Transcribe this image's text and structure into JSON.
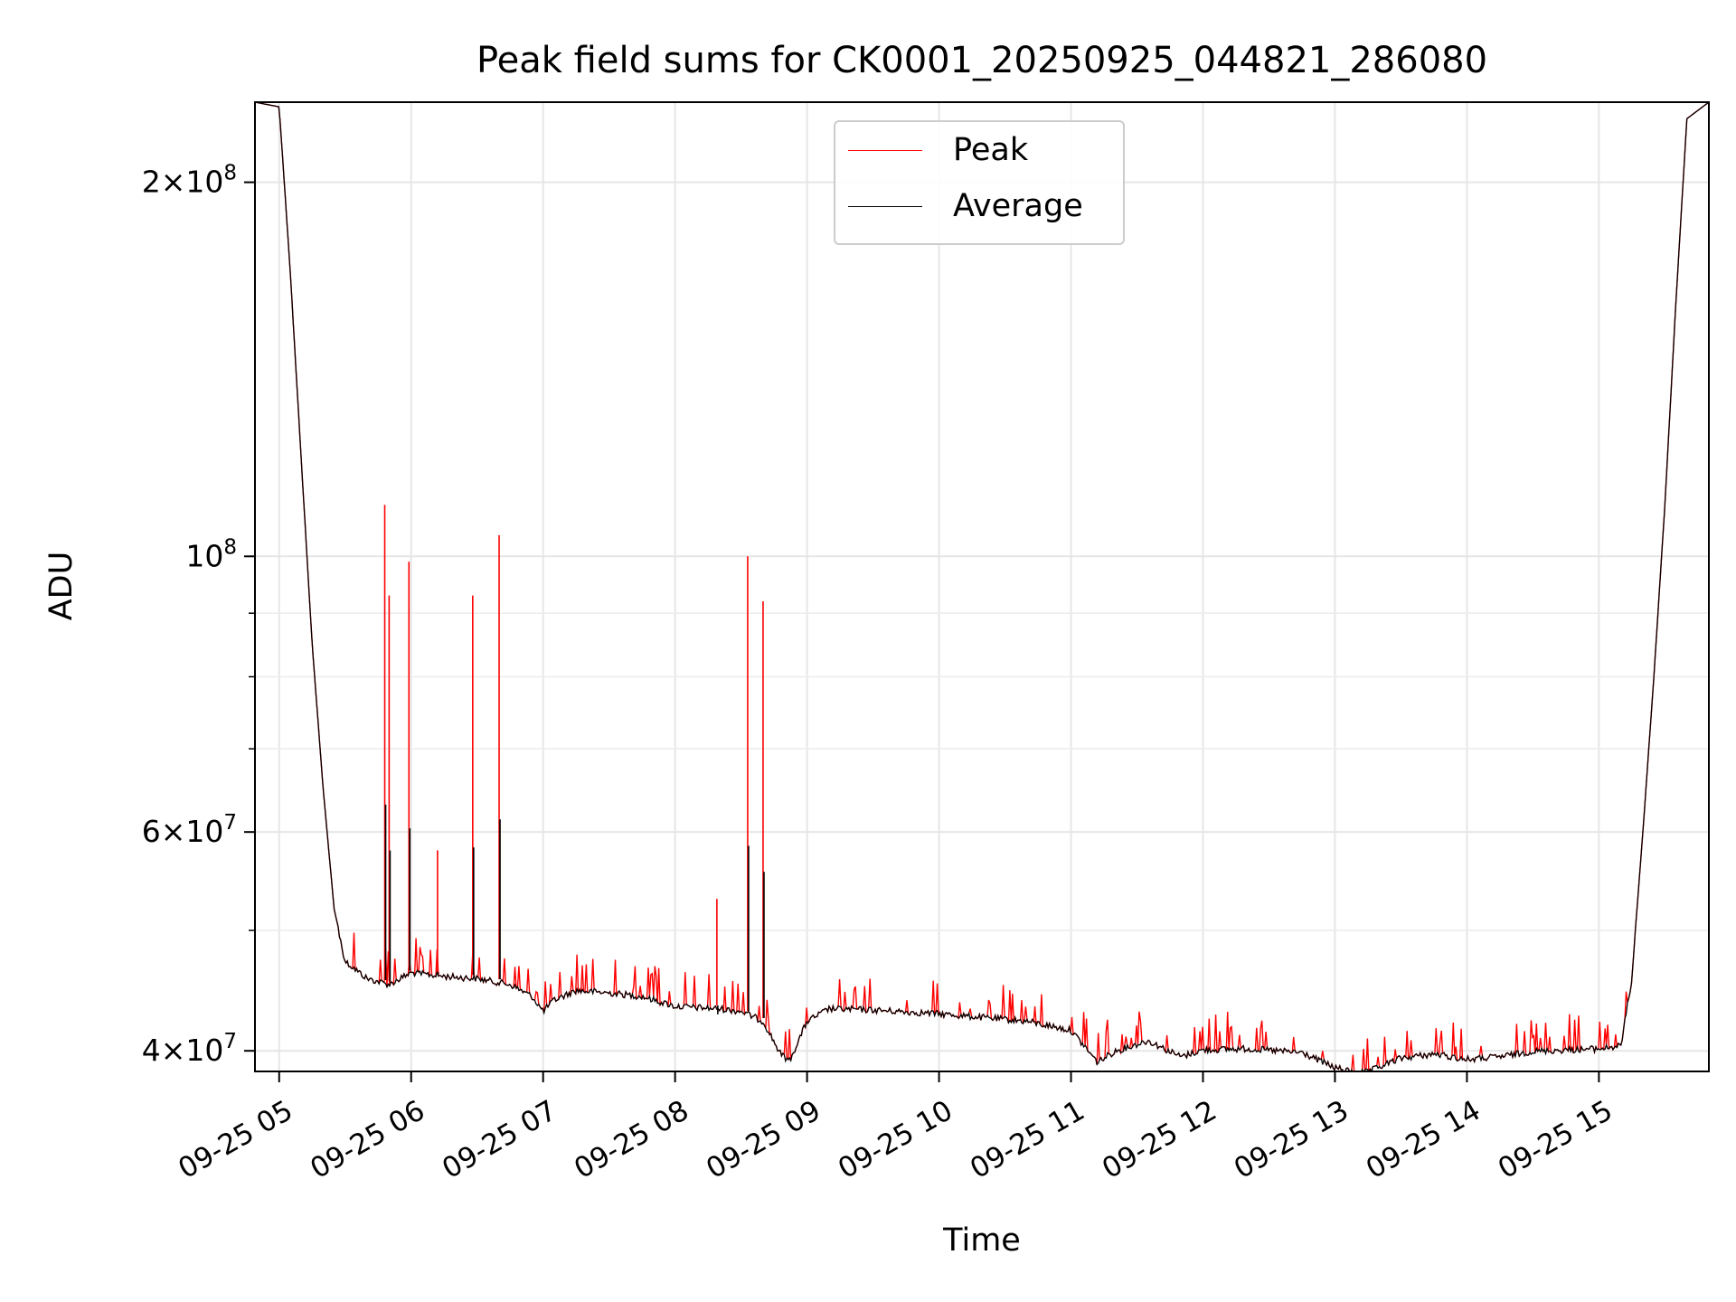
{
  "chart_data": {
    "type": "line",
    "title": "Peak field sums for CK0001_20250925_044821_286080",
    "xlabel": "Time",
    "ylabel": "ADU",
    "y_scale": "log",
    "grid": true,
    "legend_position": "top-center",
    "x_range": [
      "2025-09-25 04:49",
      "2025-09-25 15:50"
    ],
    "ylim": [
      38500000,
      232000000
    ],
    "x_ticks": [
      "09-25 05",
      "09-25 06",
      "09-25 07",
      "09-25 08",
      "09-25 09",
      "09-25 10",
      "09-25 11",
      "09-25 12",
      "09-25 13",
      "09-25 14",
      "09-25 15"
    ],
    "x_tick_times": [
      "2025-09-25 05:00",
      "2025-09-25 06:00",
      "2025-09-25 07:00",
      "2025-09-25 08:00",
      "2025-09-25 09:00",
      "2025-09-25 10:00",
      "2025-09-25 11:00",
      "2025-09-25 12:00",
      "2025-09-25 13:00",
      "2025-09-25 14:00",
      "2025-09-25 15:00"
    ],
    "y_ticks": [
      {
        "value": 40000000,
        "mantissa": "4",
        "exp": "7"
      },
      {
        "value": 60000000,
        "mantissa": "6",
        "exp": "7"
      },
      {
        "value": 100000000,
        "mantissa": "",
        "exp": "8"
      },
      {
        "value": 200000000,
        "mantissa": "2",
        "exp": "8"
      }
    ],
    "y_minor_ticks": [
      50000000,
      70000000,
      80000000,
      90000000,
      300000000
    ],
    "series": [
      {
        "name": "Average",
        "color": "#000000",
        "points": [
          [
            "2025-09-25 04:49",
            232000000
          ],
          [
            "2025-09-25 05:00",
            230000000
          ],
          [
            "2025-09-25 05:05",
            170000000
          ],
          [
            "2025-09-25 05:10",
            120000000
          ],
          [
            "2025-09-25 05:15",
            85000000
          ],
          [
            "2025-09-25 05:20",
            65000000
          ],
          [
            "2025-09-25 05:25",
            52000000
          ],
          [
            "2025-09-25 05:30",
            47500000
          ],
          [
            "2025-09-25 05:40",
            46000000
          ],
          [
            "2025-09-25 05:50",
            45500000
          ],
          [
            "2025-09-25 06:00",
            46500000
          ],
          [
            "2025-09-25 06:15",
            46200000
          ],
          [
            "2025-09-25 06:30",
            46000000
          ],
          [
            "2025-09-25 06:45",
            45500000
          ],
          [
            "2025-09-25 06:55",
            44500000
          ],
          [
            "2025-09-25 07:00",
            43300000
          ],
          [
            "2025-09-25 07:05",
            44200000
          ],
          [
            "2025-09-25 07:15",
            45000000
          ],
          [
            "2025-09-25 07:30",
            44800000
          ],
          [
            "2025-09-25 07:45",
            44500000
          ],
          [
            "2025-09-25 08:00",
            43700000
          ],
          [
            "2025-09-25 08:20",
            43500000
          ],
          [
            "2025-09-25 08:30",
            43300000
          ],
          [
            "2025-09-25 08:40",
            42500000
          ],
          [
            "2025-09-25 08:48",
            40000000
          ],
          [
            "2025-09-25 08:52",
            39500000
          ],
          [
            "2025-09-25 09:00",
            42500000
          ],
          [
            "2025-09-25 09:10",
            43500000
          ],
          [
            "2025-09-25 09:30",
            43400000
          ],
          [
            "2025-09-25 10:00",
            43100000
          ],
          [
            "2025-09-25 10:20",
            42800000
          ],
          [
            "2025-09-25 10:40",
            42500000
          ],
          [
            "2025-09-25 11:00",
            41800000
          ],
          [
            "2025-09-25 11:08",
            40200000
          ],
          [
            "2025-09-25 11:12",
            39400000
          ],
          [
            "2025-09-25 11:20",
            40200000
          ],
          [
            "2025-09-25 11:35",
            41000000
          ],
          [
            "2025-09-25 11:50",
            39800000
          ],
          [
            "2025-09-25 12:00",
            40300000
          ],
          [
            "2025-09-25 12:20",
            40400000
          ],
          [
            "2025-09-25 12:45",
            40100000
          ],
          [
            "2025-09-25 13:00",
            39000000
          ],
          [
            "2025-09-25 13:10",
            38600000
          ],
          [
            "2025-09-25 13:15",
            38700000
          ],
          [
            "2025-09-25 13:30",
            39700000
          ],
          [
            "2025-09-25 13:45",
            40000000
          ],
          [
            "2025-09-25 14:00",
            39600000
          ],
          [
            "2025-09-25 14:15",
            39800000
          ],
          [
            "2025-09-25 14:30",
            40200000
          ],
          [
            "2025-09-25 15:00",
            40400000
          ],
          [
            "2025-09-25 15:10",
            40600000
          ],
          [
            "2025-09-25 15:15",
            46000000
          ],
          [
            "2025-09-25 15:20",
            60000000
          ],
          [
            "2025-09-25 15:25",
            80000000
          ],
          [
            "2025-09-25 15:30",
            110000000
          ],
          [
            "2025-09-25 15:35",
            160000000
          ],
          [
            "2025-09-25 15:40",
            225000000
          ],
          [
            "2025-09-25 15:50",
            232000000
          ]
        ]
      },
      {
        "name": "Peak",
        "color": "#ff0000",
        "spikes": [
          [
            "2025-09-25 05:48",
            110000000
          ],
          [
            "2025-09-25 05:50",
            93000000
          ],
          [
            "2025-09-25 05:59",
            99000000
          ],
          [
            "2025-09-25 06:12",
            58000000
          ],
          [
            "2025-09-25 06:28",
            93000000
          ],
          [
            "2025-09-25 06:40",
            104000000
          ],
          [
            "2025-09-25 08:19",
            53000000
          ],
          [
            "2025-09-25 08:33",
            100000000
          ],
          [
            "2025-09-25 08:40",
            92000000
          ]
        ],
        "noise_fraction": 0.05
      }
    ]
  }
}
